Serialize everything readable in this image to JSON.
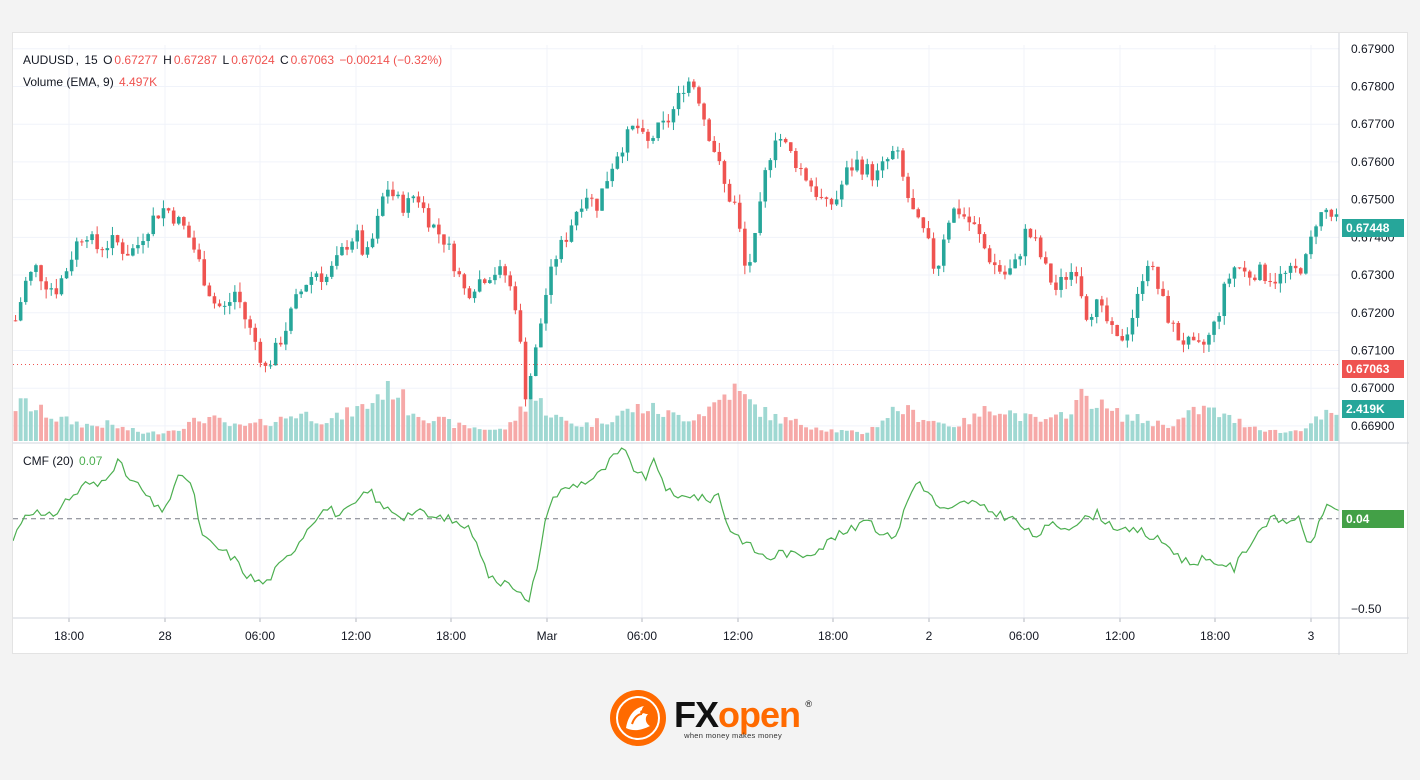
{
  "colors": {
    "up": "#26a69a",
    "down": "#ef5350",
    "cmf_line": "#4caf50",
    "grid": "#f0f3fa",
    "axis_text": "#131722",
    "brand": "#ff6a00"
  },
  "header": {
    "symbol": "AUDUSD",
    "interval": "15",
    "o_label": "O",
    "o_value": "0.67277",
    "h_label": "H",
    "h_value": "0.67287",
    "l_label": "L",
    "l_value": "0.67024",
    "c_label": "C",
    "c_value": "0.67063",
    "change": "−0.00214 (−0.32%)"
  },
  "volume_legend": {
    "label": "Volume (EMA, 9)",
    "value": "4.497K"
  },
  "cmf_legend": {
    "label": "CMF (20)",
    "value": "0.07"
  },
  "badges": {
    "last_price": "0.67448",
    "current_close": "0.67063",
    "volume": "2.419K",
    "cmf": "0.04"
  },
  "logo": {
    "brand_fx": "FX",
    "brand_open": "open",
    "registered": "®",
    "tagline": "when money makes money"
  },
  "chart_data": [
    {
      "type": "candlestick",
      "series": "AUDUSD 15m",
      "y_range": [
        0.6686,
        0.6791
      ],
      "y_ticks": [
        "0.67900",
        "0.67800",
        "0.67700",
        "0.67600",
        "0.67500",
        "0.67400",
        "0.67300",
        "0.67200",
        "0.67100",
        "0.67000",
        "0.66900"
      ],
      "x_ticks": [
        "18:00",
        "28",
        "06:00",
        "12:00",
        "18:00",
        "Mar",
        "06:00",
        "12:00",
        "18:00",
        "2",
        "06:00",
        "12:00",
        "18:00",
        "3"
      ],
      "close_path": [
        0.6718,
        0.6728,
        0.6732,
        0.6728,
        0.6726,
        0.6731,
        0.6738,
        0.6742,
        0.6737,
        0.6738,
        0.6739,
        0.6736,
        0.6737,
        0.6742,
        0.6746,
        0.6748,
        0.6745,
        0.6742,
        0.6736,
        0.6728,
        0.6722,
        0.6721,
        0.6726,
        0.6718,
        0.6712,
        0.6705,
        0.671,
        0.6716,
        0.6723,
        0.6728,
        0.6731,
        0.6729,
        0.6733,
        0.6738,
        0.6741,
        0.6734,
        0.6742,
        0.6754,
        0.675,
        0.6748,
        0.6752,
        0.6746,
        0.6742,
        0.6739,
        0.6732,
        0.6725,
        0.6728,
        0.673,
        0.6731,
        0.673,
        0.6722,
        0.6698,
        0.671,
        0.6725,
        0.6735,
        0.674,
        0.6747,
        0.6752,
        0.6748,
        0.6755,
        0.6762,
        0.6766,
        0.677,
        0.6764,
        0.6768,
        0.677,
        0.6775,
        0.6782,
        0.678,
        0.677,
        0.6762,
        0.6752,
        0.6748,
        0.673,
        0.674,
        0.6758,
        0.6768,
        0.6764,
        0.676,
        0.6756,
        0.6752,
        0.6748,
        0.675,
        0.6757,
        0.676,
        0.6758,
        0.6756,
        0.676,
        0.6763,
        0.6752,
        0.6744,
        0.674,
        0.673,
        0.6744,
        0.6748,
        0.6745,
        0.6742,
        0.6736,
        0.6732,
        0.673,
        0.6733,
        0.6742,
        0.6738,
        0.6731,
        0.6726,
        0.673,
        0.6732,
        0.672,
        0.6722,
        0.6718,
        0.6712,
        0.6715,
        0.6722,
        0.6735,
        0.6728,
        0.672,
        0.6714,
        0.6712,
        0.671,
        0.6712,
        0.6718,
        0.6728,
        0.6733,
        0.673,
        0.6731,
        0.673,
        0.6729,
        0.673,
        0.6731,
        0.6734,
        0.6745,
        0.6747,
        0.6744
      ]
    },
    {
      "type": "bar",
      "series": "Volume",
      "current_value": "2.419K",
      "values": [
        3.2,
        3.5,
        2.9,
        2.6,
        2.1,
        1.9,
        1.7,
        1.5,
        1.4,
        1.6,
        1.3,
        1.1,
        0.9,
        0.7,
        0.8,
        0.9,
        1.2,
        1.5,
        1.9,
        2.2,
        1.9,
        1.5,
        1.3,
        1.4,
        1.6,
        1.8,
        1.9,
        2.3,
        2.6,
        2.4,
        2.1,
        1.9,
        2.2,
        2.6,
        3.0,
        3.3,
        4.4,
        5.1,
        4.6,
        3.0,
        2.6,
        2.2,
        1.9,
        1.7,
        1.4,
        1.3,
        1.2,
        1.1,
        1.0,
        1.4,
        2.8,
        4.0,
        3.6,
        2.6,
        2.0,
        1.7,
        1.5,
        1.6,
        1.9,
        2.1,
        2.5,
        2.9,
        3.1,
        3.0,
        2.7,
        2.4,
        2.3,
        2.2,
        2.6,
        3.2,
        4.0,
        4.9,
        4.2,
        3.4,
        2.8,
        2.3,
        2.0,
        1.8,
        1.6,
        1.4,
        1.2,
        1.0,
        0.9,
        0.8,
        0.7,
        1.2,
        2.0,
        2.8,
        3.0,
        2.5,
        2.2,
        1.9,
        1.6,
        1.5,
        1.7,
        2.1,
        2.7,
        3.2,
        3.0,
        2.5,
        2.2,
        2.0,
        1.8,
        1.9,
        2.6,
        3.4,
        4.3,
        3.8,
        3.0,
        2.6,
        2.3,
        2.1,
        1.9,
        1.7,
        1.5,
        1.7,
        2.2,
        2.8,
        3.0,
        2.7,
        2.2,
        1.9,
        1.6,
        1.3,
        1.1,
        0.9,
        0.8,
        1.0,
        1.4,
        1.9,
        2.4,
        2.2
      ]
    },
    {
      "type": "line",
      "series": "CMF (20)",
      "y_range": [
        -0.55,
        0.42
      ],
      "y_ticks": [
        "-0.50"
      ],
      "zero_line": 0,
      "values": [
        -0.12,
        0.02,
        0.05,
        0.0,
        0.03,
        0.1,
        0.14,
        0.2,
        0.18,
        0.25,
        0.32,
        0.22,
        0.18,
        0.1,
        0.04,
        0.12,
        0.26,
        0.18,
        -0.1,
        -0.15,
        -0.18,
        -0.22,
        -0.3,
        -0.34,
        -0.36,
        -0.28,
        -0.22,
        -0.14,
        -0.05,
        0.03,
        0.06,
        0.02,
        0.05,
        0.11,
        0.16,
        0.06,
        0.05,
        0.01,
        0.04,
        0.03,
        0.0,
        0.01,
        -0.02,
        -0.04,
        -0.1,
        -0.3,
        -0.36,
        -0.33,
        -0.4,
        -0.48,
        -0.2,
        0.1,
        0.15,
        0.18,
        0.2,
        0.22,
        0.26,
        0.34,
        0.38,
        0.28,
        0.22,
        0.32,
        0.18,
        0.1,
        0.14,
        0.12,
        0.1,
        0.14,
        -0.05,
        -0.1,
        -0.15,
        -0.2,
        -0.22,
        -0.18,
        -0.2,
        -0.2,
        -0.18,
        -0.15,
        -0.1,
        -0.08,
        -0.05,
        0.02,
        -0.05,
        -0.1,
        -0.08,
        0.1,
        0.22,
        0.14,
        0.06,
        0.04,
        0.08,
        0.1,
        0.06,
        0.04,
        0.02,
        0.0,
        -0.05,
        -0.1,
        -0.06,
        -0.03,
        -0.05,
        -0.02,
        0.0,
        0.03,
        -0.02,
        -0.05,
        -0.08,
        -0.06,
        -0.1,
        -0.12,
        -0.16,
        -0.22,
        -0.25,
        -0.22,
        -0.26,
        -0.24,
        -0.28,
        -0.18,
        -0.1,
        -0.02,
        0.0,
        -0.02,
        0.02,
        -0.15,
        -0.05,
        0.1,
        0.04
      ]
    }
  ]
}
